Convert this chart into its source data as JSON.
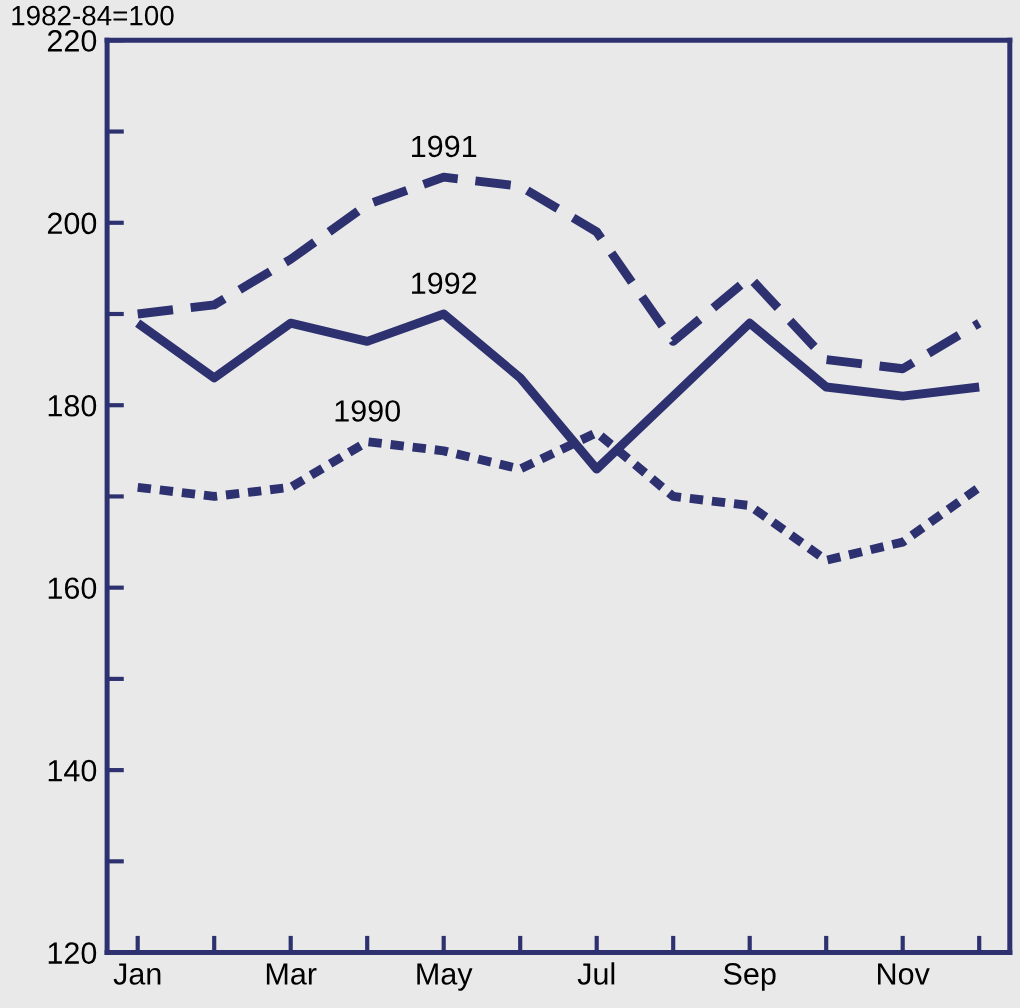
{
  "chart_data": {
    "type": "line",
    "ylabel": "1982-84=100",
    "categories": [
      "Jan",
      null,
      "Mar",
      null,
      "May",
      null,
      "Jul",
      null,
      "Sep",
      null,
      "Nov",
      null
    ],
    "series": [
      {
        "name": "1990",
        "color": "#2e3170",
        "line_style": "dotted",
        "values": [
          171,
          170,
          171,
          176,
          175,
          173,
          177,
          170,
          169,
          163,
          165,
          171
        ]
      },
      {
        "name": "1991",
        "color": "#2e3170",
        "line_style": "dashed",
        "values": [
          190,
          191,
          196,
          202,
          205,
          204,
          199,
          187,
          194,
          185,
          184,
          189
        ]
      },
      {
        "name": "1992",
        "color": "#2e3170",
        "line_style": "solid",
        "values": [
          189,
          183,
          189,
          187,
          190,
          183,
          173,
          181,
          189,
          182,
          181,
          182
        ]
      }
    ],
    "ylim": [
      120,
      220
    ],
    "yticks": [
      120,
      {
        "value": 130,
        "label": null
      },
      140,
      {
        "value": 150,
        "label": null
      },
      160,
      {
        "value": 170,
        "label": null
      },
      180,
      {
        "value": 190,
        "label": null
      },
      200,
      {
        "value": 210,
        "label": null
      },
      220
    ],
    "grid": false,
    "legend": false,
    "marker": "none"
  }
}
